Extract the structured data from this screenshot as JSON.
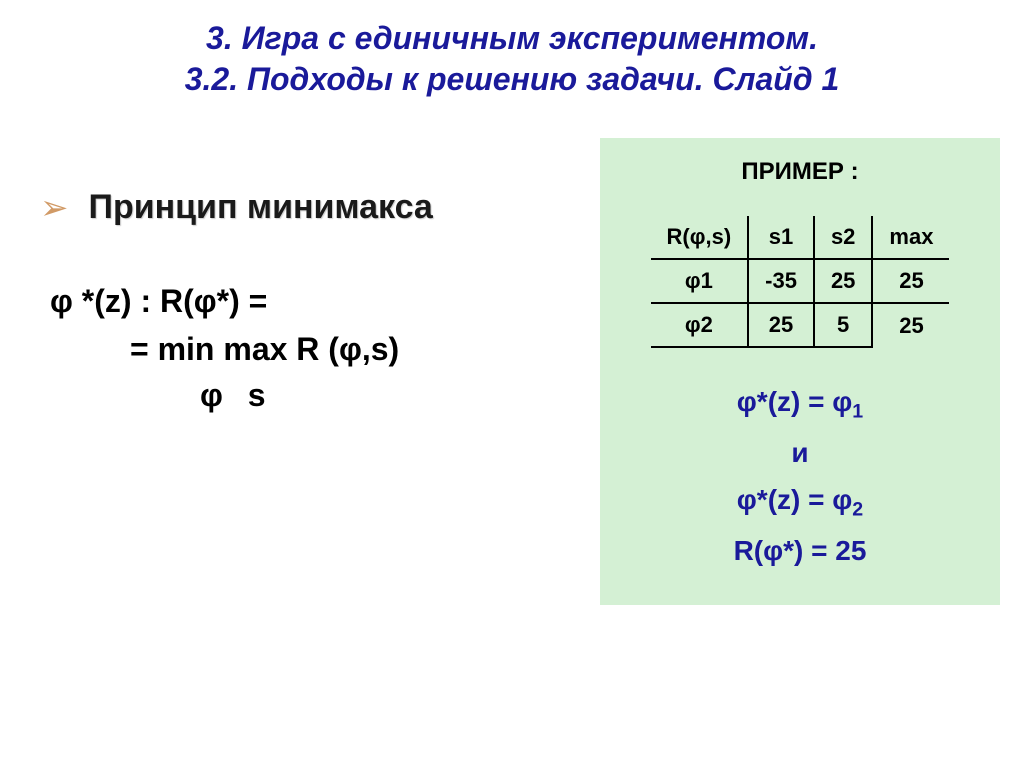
{
  "header": {
    "line1": "3. Игра с единичным экспериментом.",
    "line2": "3.2. Подходы к решению задачи.  Слайд 1"
  },
  "left": {
    "bullet_label": "Принцип минимакса",
    "formula_line1": "φ *(z) :   R(φ*) =",
    "formula_line2": "=   min max R (φ,s)",
    "formula_sub": "φ      s"
  },
  "example": {
    "title": "ПРИМЕР :",
    "header_cells": [
      "R(φ,s)",
      "s1",
      "s2",
      "max"
    ],
    "rows": [
      {
        "phi": "φ1",
        "s1": "-35",
        "s2": "25",
        "max": "25"
      },
      {
        "phi": "φ2",
        "s1": "25",
        "s2": "5",
        "max": "25"
      }
    ],
    "results": {
      "r1_left": "φ*(z) = φ",
      "r1_sub": "1",
      "r_and": "и",
      "r2_left": "φ*(z) = φ",
      "r2_sub": "2",
      "r3": "R(φ*) = 25"
    }
  },
  "colors": {
    "header_text": "#1a1a9a",
    "bullet_icon": "#d19a66",
    "example_bg": "#d4f0d4",
    "result_text": "#1a1a9a",
    "body_bg": "#ffffff"
  }
}
